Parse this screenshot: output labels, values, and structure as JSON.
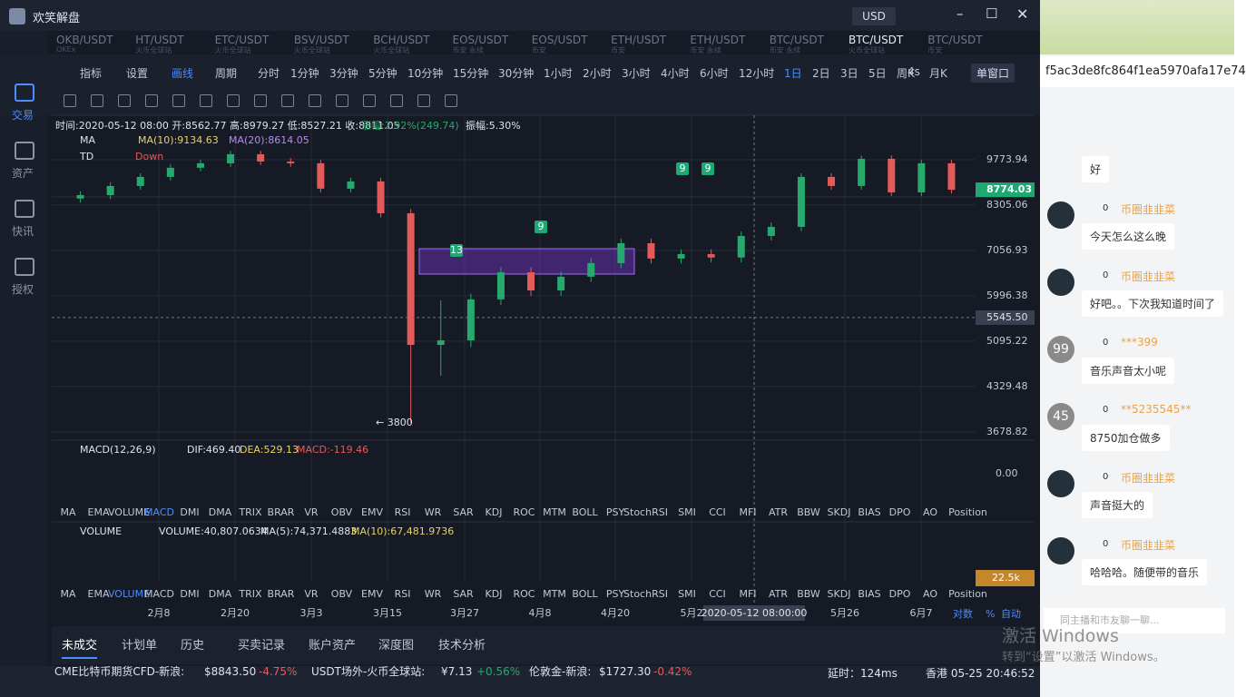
{
  "window": {
    "title": "欢笑解盘",
    "currency": "USD"
  },
  "sidebar": [
    "交易",
    "资产",
    "快讯",
    "授权"
  ],
  "pair_tabs": [
    {
      "name": "OKB/USDT",
      "sub": "OKEx"
    },
    {
      "name": "HT/USDT",
      "sub": "火币全球站"
    },
    {
      "name": "ETC/USDT",
      "sub": "火币全球站"
    },
    {
      "name": "BSV/USDT",
      "sub": "火币全球站"
    },
    {
      "name": "BCH/USDT",
      "sub": "火币全球站"
    },
    {
      "name": "EOS/USDT",
      "sub": "币安 永续"
    },
    {
      "name": "EOS/USDT",
      "sub": "币安"
    },
    {
      "name": "ETH/USDT",
      "sub": "币安"
    },
    {
      "name": "ETH/USDT",
      "sub": "币安 永续"
    },
    {
      "name": "BTC/USDT",
      "sub": "币安 永续"
    },
    {
      "name": "BTC/USDT",
      "sub": "火币全球站"
    },
    {
      "name": "BTC/USDT",
      "sub": "币安"
    }
  ],
  "toolbar": {
    "indicator": "指标",
    "settings": "设置",
    "draw": "画线",
    "period": "周期",
    "timeframes": [
      "分时",
      "1分钟",
      "3分钟",
      "5分钟",
      "10分钟",
      "15分钟",
      "30分钟",
      "1小时",
      "2小时",
      "3小时",
      "4小时",
      "6小时",
      "12小时",
      "1日",
      "2日",
      "3日",
      "5日",
      "周K",
      "月K"
    ],
    "refresh": "4s",
    "window_mode": "单窗口"
  },
  "chart": {
    "info": "时间:2020-05-12 08:00  开:8562.77  高:8979.27  低:8527.21  收:8811.05",
    "change": "涨幅:2.92%(249.74)",
    "amplitude": "振幅:5.30%",
    "ma_label": "MA",
    "ma10": "MA(10):9134.63",
    "ma20": "MA(20):8614.05",
    "td_label": "TD",
    "td_text": "Down",
    "td_marks": [
      "9",
      "9",
      "9",
      "13"
    ],
    "log_scale": true,
    "ylim": [
      3595,
      10810
    ],
    "yticks": [
      9773.94,
      8305.06,
      7056.93,
      5996.38,
      5095.22,
      4329.48,
      3678.82
    ],
    "current_price": 8774.03,
    "crosshair_price": {
      "value": 5545.5,
      "label": "5545.50"
    },
    "low_annotation": "← 3800",
    "up_color": "#26a96c",
    "down_color": "#e35a5b",
    "candles": [
      [
        8500,
        8727,
        8380,
        8607
      ],
      [
        8607,
        9013,
        8487,
        8893
      ],
      [
        8893,
        9308,
        8773,
        9188
      ],
      [
        9188,
        9614,
        9068,
        9494
      ],
      [
        9494,
        9768,
        9374,
        9648
      ],
      [
        9648,
        10086,
        9528,
        9966
      ],
      [
        9966,
        10086,
        9590,
        9710
      ],
      [
        9710,
        9830,
        9528,
        9648
      ],
      [
        9648,
        9768,
        8688,
        8808
      ],
      [
        8808,
        9160,
        8688,
        9040
      ],
      [
        9040,
        9160,
        7944,
        8064
      ],
      [
        8064,
        8184,
        3800,
        5028
      ],
      [
        5028,
        5900,
        4500,
        5110
      ],
      [
        5110,
        6040,
        4990,
        5920
      ],
      [
        5920,
        6645,
        5800,
        6525
      ],
      [
        6525,
        6645,
        5993,
        6113
      ],
      [
        6113,
        6542,
        5993,
        6422
      ],
      [
        6422,
        6863,
        6302,
        6743
      ],
      [
        6743,
        7362,
        6623,
        7242
      ],
      [
        7242,
        7362,
        6734,
        6854
      ],
      [
        6854,
        7085,
        6734,
        6965
      ],
      [
        6965,
        7085,
        6760,
        6880
      ],
      [
        6880,
        7552,
        6760,
        7432
      ],
      [
        7432,
        7800,
        7312,
        7680
      ],
      [
        7680,
        9308,
        7560,
        9188
      ],
      [
        9188,
        9308,
        8773,
        8893
      ],
      [
        8893,
        9925,
        8773,
        9805
      ],
      [
        9805,
        9925,
        8572,
        8692
      ],
      [
        8692,
        9768,
        8572,
        9648
      ],
      [
        9648,
        9768,
        8654,
        8774
      ]
    ]
  },
  "macd": {
    "label": "MACD(12,26,9)",
    "dif": "DIF:469.40",
    "dea": "DEA:529.13",
    "macd": "MACD:-119.46",
    "zero": "0.00"
  },
  "indicators": [
    "MA",
    "EMA",
    "VOLUME",
    "MACD",
    "DMI",
    "DMA",
    "TRIX",
    "BRAR",
    "VR",
    "OBV",
    "EMV",
    "RSI",
    "WR",
    "SAR",
    "KDJ",
    "ROC",
    "MTM",
    "BOLL",
    "PSY",
    "StochRSI",
    "SMI",
    "CCI",
    "MFI",
    "ATR",
    "BBW",
    "SKDJ",
    "BIAS",
    "DPO",
    "AO",
    "Position"
  ],
  "volume": {
    "label": "VOLUME",
    "vol": "VOLUME:40,807.0634",
    "ma5": "MA(5):74,371.4883",
    "ma10": "MA(10):67,481.9736",
    "axis": "22.5k"
  },
  "x_labels": [
    "2月8",
    "2月20",
    "3月3",
    "3月15",
    "3月27",
    "4月8",
    "4月20",
    "5月2",
    "5月26",
    "6月7"
  ],
  "crosshair_date": "2020-05-12 08:00:00",
  "axis_options": [
    "对数",
    "%",
    "自动"
  ],
  "bottom_tabs": [
    "未成交",
    "计划单",
    "历史",
    "买卖记录",
    "账户资产",
    "深度图",
    "技术分析"
  ],
  "tickers": [
    {
      "name": "CME比特币期货CFD-新浪:",
      "price": "$8843.50",
      "change": "-4.75%"
    },
    {
      "name": "USDT场外-火币全球站:",
      "price": "¥7.13",
      "change": "+0.56%"
    },
    {
      "name": "伦敦金-新浪:",
      "price": "$1727.30",
      "change": "-0.42%"
    }
  ],
  "latency": "延时：124ms",
  "clock": "香港 05-25 20:46:52",
  "chat": {
    "header": "f5ac3de8fc864f1ea5970afa17e74",
    "first": "好",
    "messages": [
      {
        "avatar": "",
        "user": "币圈韭韭菜",
        "level": "0",
        "text": "今天怎么这么晚"
      },
      {
        "avatar": "",
        "user": "币圈韭韭菜",
        "level": "0",
        "text": "好吧。。下次我知道时间了"
      },
      {
        "avatar": "99",
        "user": "***399",
        "level": "0",
        "text": "音乐声音太小呢"
      },
      {
        "avatar": "45",
        "user": "**5235545**",
        "level": "0",
        "text": "8750加仓做多"
      },
      {
        "avatar": "",
        "user": "币圈韭韭菜",
        "level": "0",
        "text": "声音挺大的"
      },
      {
        "avatar": "",
        "user": "币圈韭韭菜",
        "level": "0",
        "text": "哈哈哈。随便带的音乐"
      }
    ],
    "placeholder": "同主播和市友聊一聊..."
  },
  "watermark": {
    "title": "激活 Windows",
    "hint": "转到“设置”以激活 Windows。"
  }
}
